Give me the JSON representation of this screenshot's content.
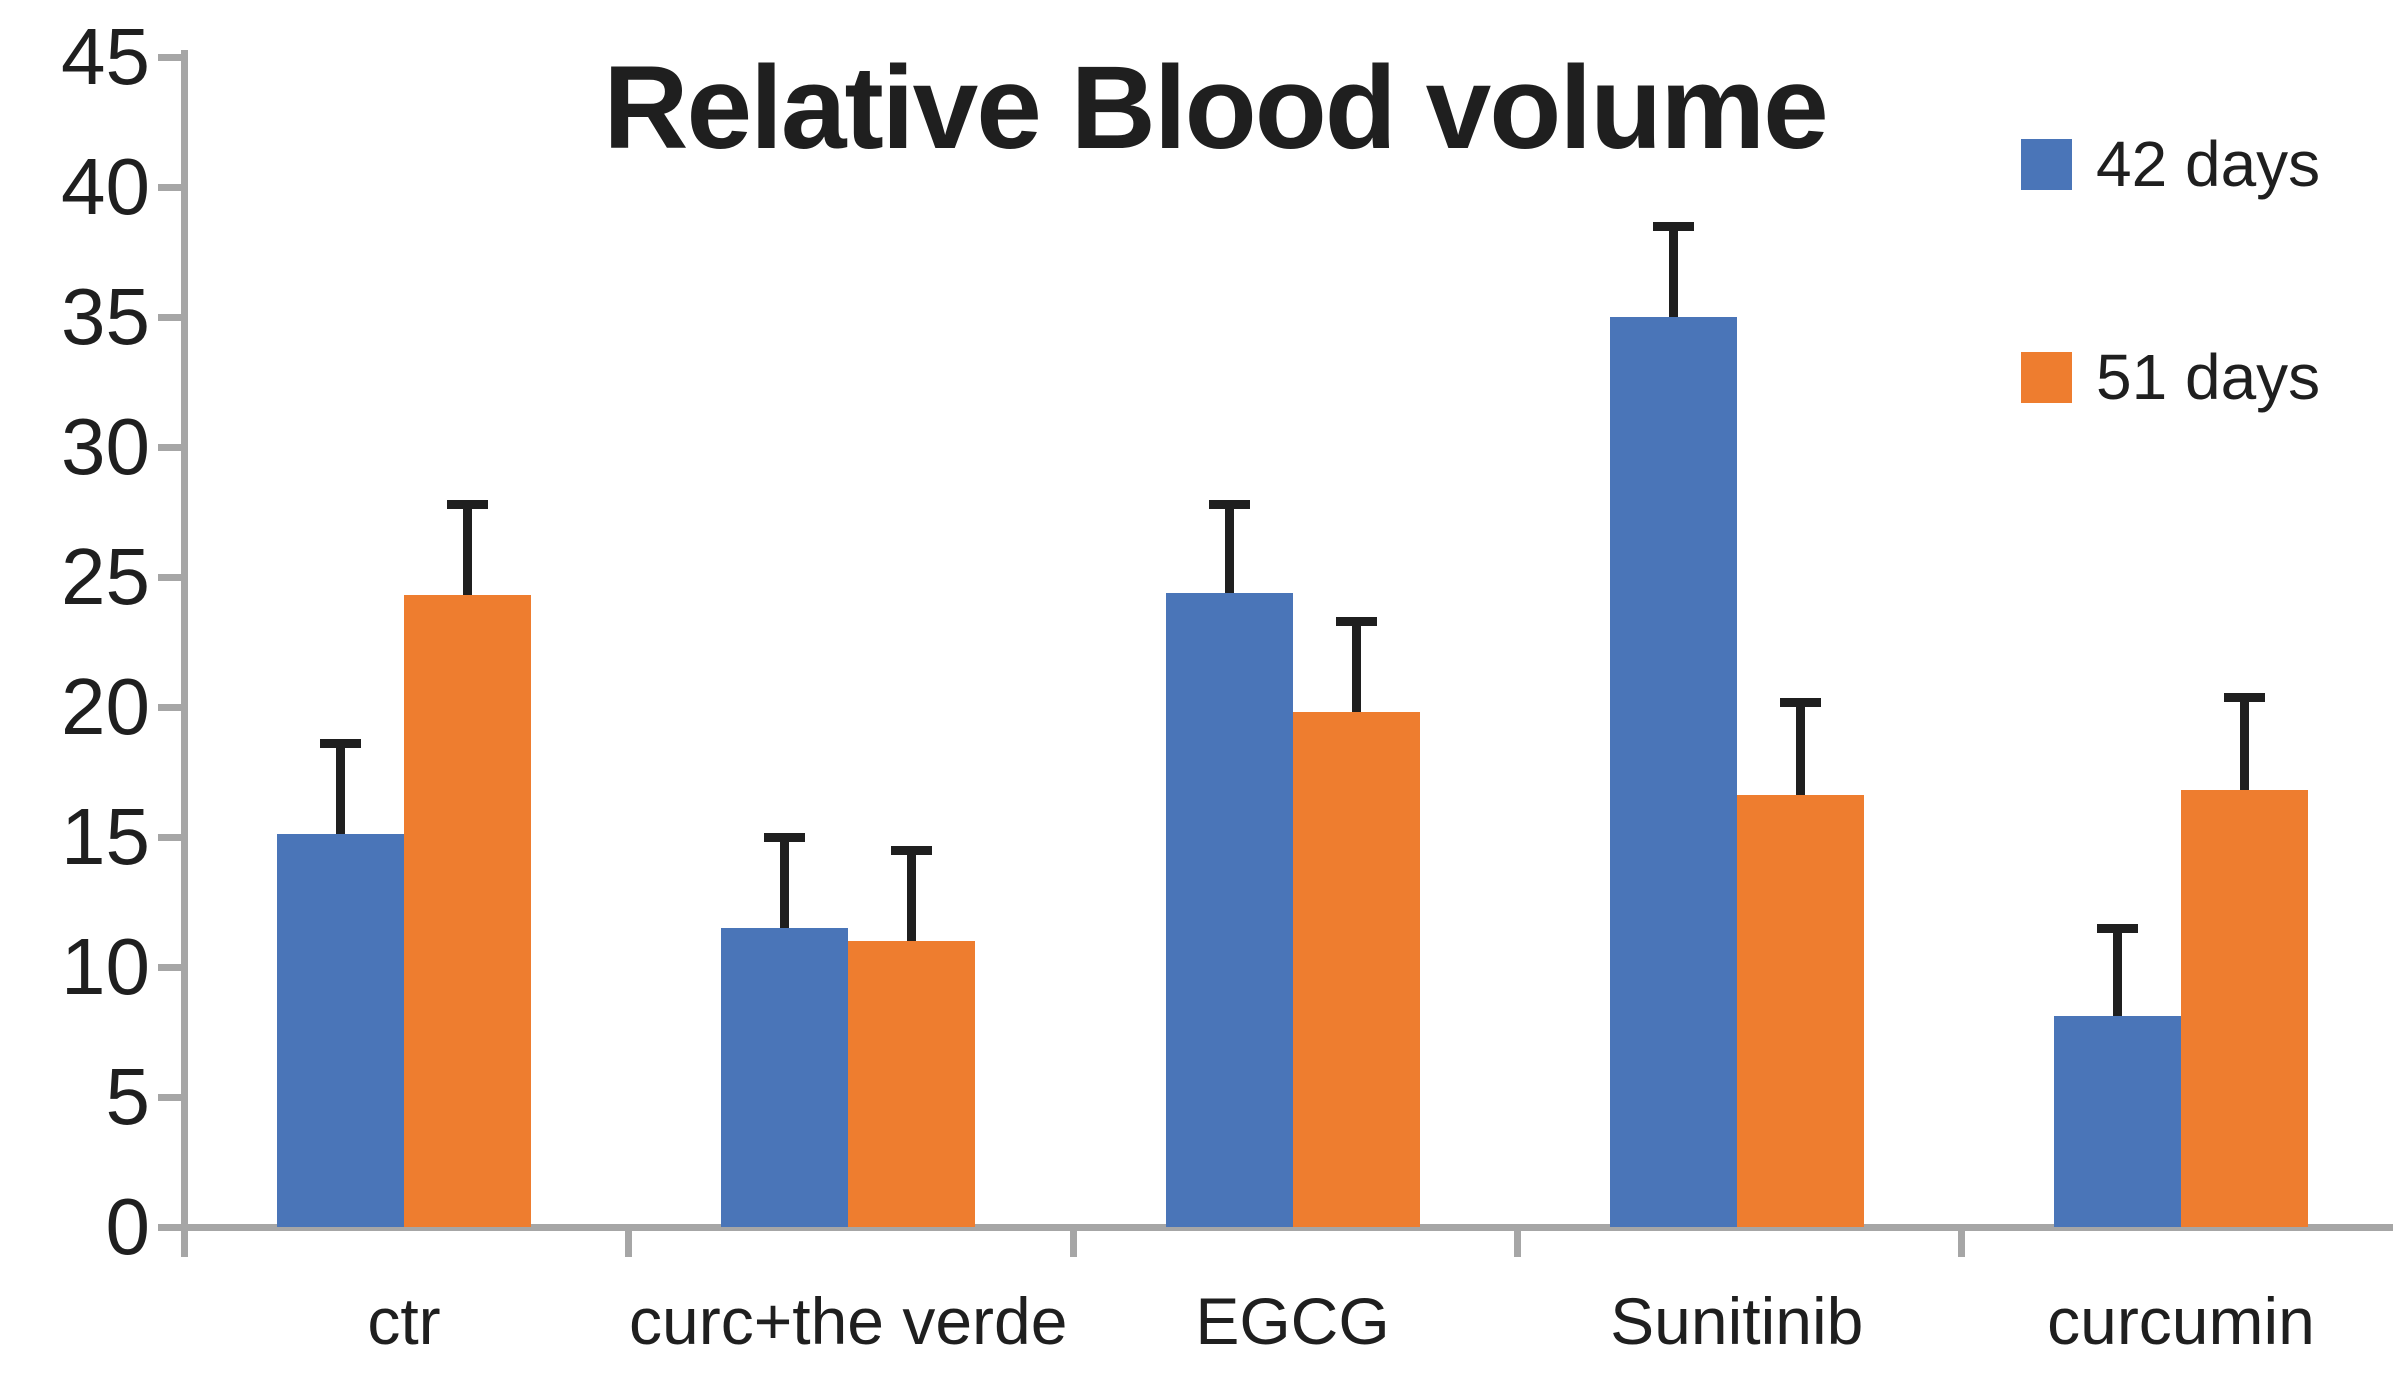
{
  "chart_data": {
    "type": "bar",
    "title": "Relative Blood volume",
    "categories": [
      "ctr",
      "curc+the verde",
      "EGCG",
      "Sunitinib",
      "curcumin"
    ],
    "series": [
      {
        "name": "42 days",
        "color": "#4a75b8",
        "values": [
          15.1,
          11.5,
          24.4,
          35.0,
          8.1
        ],
        "errors_plus": [
          3.5,
          3.5,
          3.4,
          3.5,
          3.4
        ]
      },
      {
        "name": "51 days",
        "color": "#ee7d2f",
        "values": [
          24.3,
          11.0,
          19.8,
          16.6,
          16.8
        ],
        "errors_plus": [
          3.5,
          3.5,
          3.5,
          3.6,
          3.6
        ]
      }
    ],
    "xlabel": "",
    "ylabel": "",
    "ylim": [
      0,
      45
    ],
    "yticks": [
      0,
      5,
      10,
      15,
      20,
      25,
      30,
      35,
      40,
      45
    ],
    "grid": "off",
    "legend_position": "top-right",
    "error_bars": "upper-only-black",
    "axis_color": "#a6a6a6",
    "text_color": "#1f1f1f",
    "background_color": "#ffffff"
  }
}
